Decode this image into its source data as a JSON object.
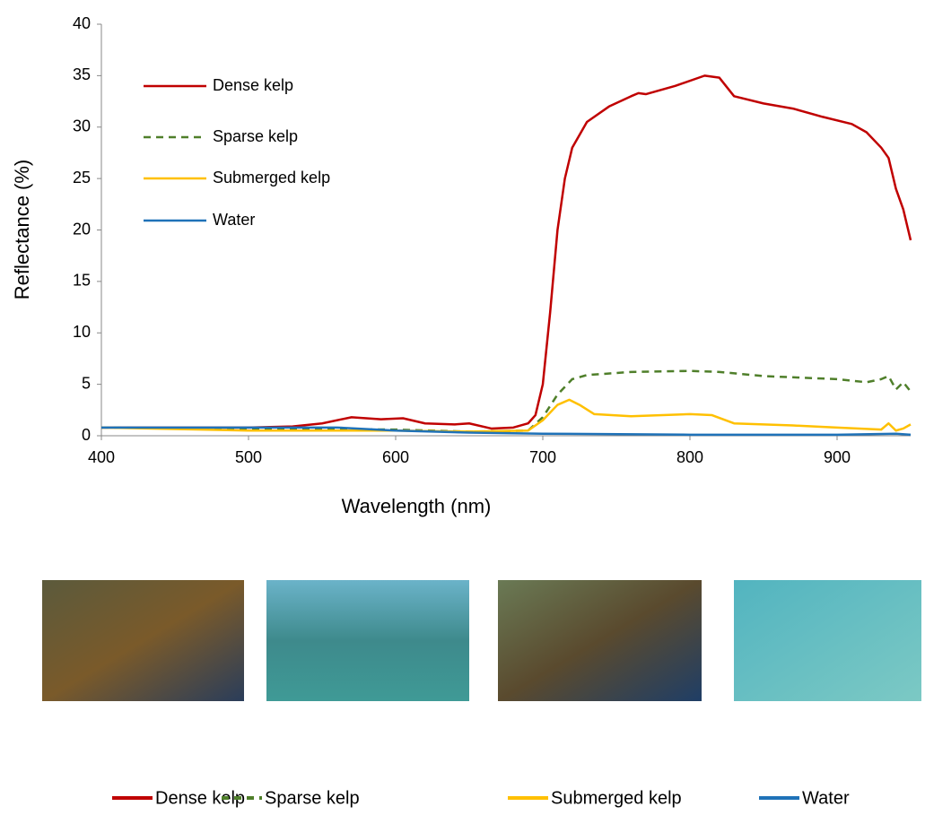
{
  "chart_data": {
    "type": "line",
    "x_label": "Wavelength (nm)",
    "y_label": "Reflectance (%)",
    "xlim": [
      400,
      950
    ],
    "ylim": [
      0,
      40
    ],
    "xticks": [
      400,
      500,
      600,
      700,
      800,
      900
    ],
    "yticks": [
      0,
      5,
      10,
      15,
      20,
      25,
      30,
      35,
      40
    ],
    "grid": false,
    "legend": "upper left",
    "series": [
      {
        "name": "Dense kelp",
        "color": "#c00000",
        "dashed": false,
        "x": [
          400,
          450,
          500,
          530,
          550,
          570,
          590,
          605,
          620,
          640,
          650,
          665,
          680,
          690,
          695,
          700,
          705,
          710,
          715,
          720,
          730,
          745,
          760,
          765,
          770,
          790,
          810,
          820,
          830,
          850,
          870,
          890,
          910,
          920,
          930,
          935,
          940,
          945,
          950
        ],
        "values": [
          0.8,
          0.8,
          0.8,
          0.9,
          1.2,
          1.8,
          1.6,
          1.7,
          1.2,
          1.1,
          1.2,
          0.7,
          0.8,
          1.2,
          2,
          5,
          12,
          20,
          25,
          28,
          30.5,
          32,
          33,
          33.3,
          33.2,
          34,
          35,
          34.8,
          33,
          32.3,
          31.8,
          31,
          30.3,
          29.5,
          28,
          27,
          24,
          22,
          19
        ]
      },
      {
        "name": "Sparse kelp",
        "color": "#4f7f2a",
        "dashed": true,
        "x": [
          400,
          500,
          600,
          650,
          690,
          700,
          710,
          720,
          730,
          760,
          800,
          820,
          850,
          900,
          920,
          930,
          935,
          940,
          945,
          950
        ],
        "values": [
          0.8,
          0.7,
          0.6,
          0.4,
          0.5,
          1.8,
          4,
          5.5,
          5.9,
          6.2,
          6.3,
          6.2,
          5.8,
          5.5,
          5.2,
          5.5,
          5.8,
          4.5,
          5.2,
          4.3
        ]
      },
      {
        "name": "Submerged kelp",
        "color": "#ffc000",
        "dashed": false,
        "x": [
          400,
          500,
          550,
          600,
          650,
          690,
          700,
          710,
          718,
          725,
          735,
          760,
          800,
          815,
          830,
          870,
          900,
          930,
          935,
          940,
          945,
          950
        ],
        "values": [
          0.8,
          0.5,
          0.5,
          0.5,
          0.4,
          0.5,
          1.5,
          3,
          3.5,
          3,
          2.1,
          1.9,
          2.1,
          2,
          1.2,
          1.0,
          0.8,
          0.6,
          1.2,
          0.5,
          0.7,
          1.1
        ]
      },
      {
        "name": "Water",
        "color": "#1f72b8",
        "dashed": false,
        "x": [
          400,
          500,
          560,
          600,
          650,
          700,
          800,
          900,
          940,
          950
        ],
        "values": [
          0.8,
          0.8,
          0.8,
          0.5,
          0.3,
          0.2,
          0.1,
          0.1,
          0.2,
          0.1
        ]
      }
    ]
  }
}
